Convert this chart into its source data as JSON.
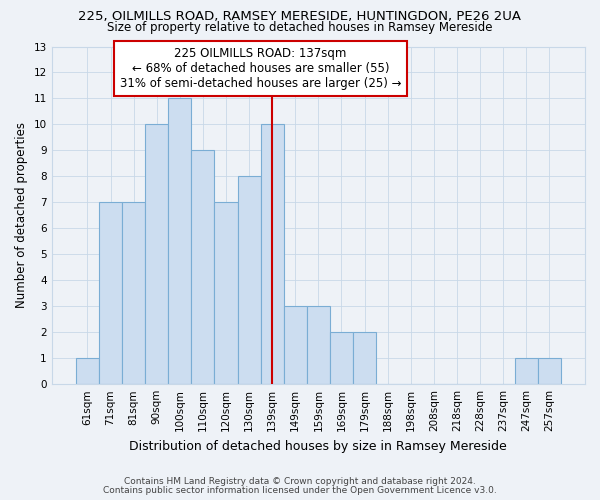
{
  "title1": "225, OILMILLS ROAD, RAMSEY MERESIDE, HUNTINGDON, PE26 2UA",
  "title2": "Size of property relative to detached houses in Ramsey Mereside",
  "xlabel": "Distribution of detached houses by size in Ramsey Mereside",
  "ylabel": "Number of detached properties",
  "footnote1": "Contains HM Land Registry data © Crown copyright and database right 2024.",
  "footnote2": "Contains public sector information licensed under the Open Government Licence v3.0.",
  "bar_labels": [
    "61sqm",
    "71sqm",
    "81sqm",
    "90sqm",
    "100sqm",
    "110sqm",
    "120sqm",
    "130sqm",
    "139sqm",
    "149sqm",
    "159sqm",
    "169sqm",
    "179sqm",
    "188sqm",
    "198sqm",
    "208sqm",
    "218sqm",
    "228sqm",
    "237sqm",
    "247sqm",
    "257sqm"
  ],
  "bar_values": [
    1,
    7,
    7,
    10,
    11,
    9,
    7,
    8,
    10,
    3,
    3,
    2,
    2,
    0,
    0,
    0,
    0,
    0,
    0,
    1,
    1
  ],
  "bar_color": "#ccddf0",
  "bar_edge_color": "#7aadd4",
  "vline_x": 8,
  "vline_color": "#cc0000",
  "ylim": [
    0,
    13
  ],
  "yticks": [
    0,
    1,
    2,
    3,
    4,
    5,
    6,
    7,
    8,
    9,
    10,
    11,
    12,
    13
  ],
  "annotation_title": "225 OILMILLS ROAD: 137sqm",
  "annotation_line1": "← 68% of detached houses are smaller (55)",
  "annotation_line2": "31% of semi-detached houses are larger (25) →",
  "annotation_box_color": "#ffffff",
  "annotation_box_edge": "#cc0000",
  "grid_color": "#c8d8e8",
  "bg_color": "#eef2f7"
}
